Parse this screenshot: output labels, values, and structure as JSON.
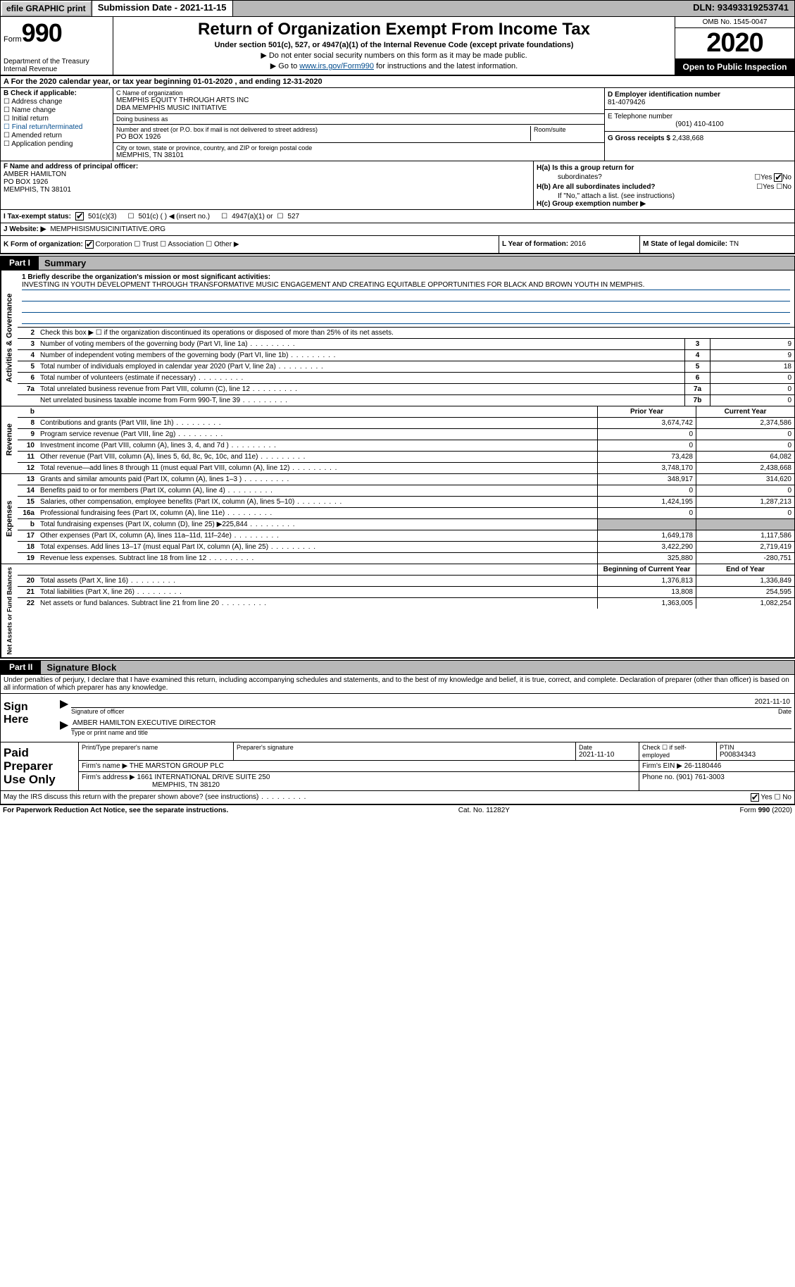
{
  "topbar": {
    "efile": "efile GRAPHIC print",
    "sub_date_label": "Submission Date - ",
    "sub_date": "2021-11-15",
    "dln_label": "DLN: ",
    "dln": "93493319253741"
  },
  "header": {
    "form_prefix": "Form",
    "form_num": "990",
    "dept": "Department of the Treasury\nInternal Revenue",
    "title": "Return of Organization Exempt From Income Tax",
    "subtitle": "Under section 501(c), 527, or 4947(a)(1) of the Internal Revenue Code (except private foundations)",
    "line1": "▶ Do not enter social security numbers on this form as it may be made public.",
    "line2_pre": "▶ Go to ",
    "line2_link": "www.irs.gov/Form990",
    "line2_post": " for instructions and the latest information.",
    "omb": "OMB No. 1545-0047",
    "year": "2020",
    "open": "Open to Public Inspection"
  },
  "row_a": "A For the 2020 calendar year, or tax year beginning 01-01-2020   , and ending 12-31-2020",
  "section_b": {
    "label": "B Check if applicable:",
    "checks": [
      "Address change",
      "Name change",
      "Initial return",
      "Final return/terminated",
      "Amended return",
      "Application pending"
    ],
    "c_name_label": "C Name of organization",
    "c_name": "MEMPHIS EQUITY THROUGH ARTS INC\nDBA MEMPHIS MUSIC INITIATIVE",
    "dba_label": "Doing business as",
    "dba": "",
    "street_label": "Number and street (or P.O. box if mail is not delivered to street address)",
    "street": "PO BOX 1926",
    "room_label": "Room/suite",
    "city_label": "City or town, state or province, country, and ZIP or foreign postal code",
    "city": "MEMPHIS, TN  38101",
    "d_label": "D Employer identification number",
    "d_ein": "81-4079426",
    "e_label": "E Telephone number",
    "e_phone": "(901) 410-4100",
    "g_label": "G Gross receipts $ ",
    "g_amount": "2,438,668"
  },
  "section_f": {
    "label": "F  Name and address of principal officer:",
    "name": "AMBER HAMILTON",
    "addr1": "PO BOX 1926",
    "addr2": "MEMPHIS, TN  38101"
  },
  "section_h": {
    "ha_label": "H(a)  Is this a group return for",
    "ha_sub": "subordinates?",
    "ha_yes": "Yes",
    "ha_no": "No",
    "hb_label": "H(b)  Are all subordinates included?",
    "hb_yes": "Yes",
    "hb_no": "No",
    "hb_note": "If \"No,\" attach a list. (see instructions)",
    "hc_label": "H(c)  Group exemption number ▶"
  },
  "row_i": {
    "label": "I   Tax-exempt status:",
    "opts": [
      "501(c)(3)",
      "501(c) (  ) ◀ (insert no.)",
      "4947(a)(1) or",
      "527"
    ]
  },
  "row_j": {
    "label": "J   Website: ▶ ",
    "val": "MEMPHISISMUSICINITIATIVE.ORG"
  },
  "row_k": {
    "label": "K Form of organization:",
    "opts": [
      "Corporation",
      "Trust",
      "Association",
      "Other ▶"
    ],
    "l_label": "L Year of formation: ",
    "l_val": "2016",
    "m_label": "M State of legal domicile: ",
    "m_val": "TN"
  },
  "part1": {
    "tab": "Part I",
    "title": "Summary",
    "side_gov": "Activities & Governance",
    "side_rev": "Revenue",
    "side_exp": "Expenses",
    "side_net": "Net Assets or Fund Balances",
    "line1_label": "1  Briefly describe the organization's mission or most significant activities:",
    "mission": "INVESTING IN YOUTH DEVELOPMENT THROUGH TRANSFORMATIVE MUSIC ENGAGEMENT AND CREATING EQUITABLE OPPORTUNITIES FOR BLACK AND BROWN YOUTH IN MEMPHIS.",
    "line2": "Check this box ▶ ☐  if the organization discontinued its operations or disposed of more than 25% of its net assets.",
    "gov_lines": [
      {
        "num": "3",
        "desc": "Number of voting members of the governing body (Part VI, line 1a)",
        "box": "3",
        "val": "9"
      },
      {
        "num": "4",
        "desc": "Number of independent voting members of the governing body (Part VI, line 1b)",
        "box": "4",
        "val": "9"
      },
      {
        "num": "5",
        "desc": "Total number of individuals employed in calendar year 2020 (Part V, line 2a)",
        "box": "5",
        "val": "18"
      },
      {
        "num": "6",
        "desc": "Total number of volunteers (estimate if necessary)",
        "box": "6",
        "val": "0"
      },
      {
        "num": "7a",
        "desc": "Total unrelated business revenue from Part VIII, column (C), line 12",
        "box": "7a",
        "val": "0"
      },
      {
        "num": "",
        "desc": "Net unrelated business taxable income from Form 990-T, line 39",
        "box": "7b",
        "val": "0"
      }
    ],
    "col_hdr_b": "b",
    "col_prior": "Prior Year",
    "col_curr": "Current Year",
    "rev_lines": [
      {
        "num": "8",
        "desc": "Contributions and grants (Part VIII, line 1h)",
        "prior": "3,674,742",
        "curr": "2,374,586"
      },
      {
        "num": "9",
        "desc": "Program service revenue (Part VIII, line 2g)",
        "prior": "0",
        "curr": "0"
      },
      {
        "num": "10",
        "desc": "Investment income (Part VIII, column (A), lines 3, 4, and 7d )",
        "prior": "0",
        "curr": "0"
      },
      {
        "num": "11",
        "desc": "Other revenue (Part VIII, column (A), lines 5, 6d, 8c, 9c, 10c, and 11e)",
        "prior": "73,428",
        "curr": "64,082"
      },
      {
        "num": "12",
        "desc": "Total revenue—add lines 8 through 11 (must equal Part VIII, column (A), line 12)",
        "prior": "3,748,170",
        "curr": "2,438,668"
      }
    ],
    "exp_lines": [
      {
        "num": "13",
        "desc": "Grants and similar amounts paid (Part IX, column (A), lines 1–3 )",
        "prior": "348,917",
        "curr": "314,620"
      },
      {
        "num": "14",
        "desc": "Benefits paid to or for members (Part IX, column (A), line 4)",
        "prior": "0",
        "curr": "0"
      },
      {
        "num": "15",
        "desc": "Salaries, other compensation, employee benefits (Part IX, column (A), lines 5–10)",
        "prior": "1,424,195",
        "curr": "1,287,213"
      },
      {
        "num": "16a",
        "desc": "Professional fundraising fees (Part IX, column (A), line 11e)",
        "prior": "0",
        "curr": "0"
      },
      {
        "num": "b",
        "desc": "Total fundraising expenses (Part IX, column (D), line 25) ▶225,844",
        "prior": "",
        "curr": "",
        "shaded": true
      },
      {
        "num": "17",
        "desc": "Other expenses (Part IX, column (A), lines 11a–11d, 11f–24e)",
        "prior": "1,649,178",
        "curr": "1,117,586"
      },
      {
        "num": "18",
        "desc": "Total expenses. Add lines 13–17 (must equal Part IX, column (A), line 25)",
        "prior": "3,422,290",
        "curr": "2,719,419"
      },
      {
        "num": "19",
        "desc": "Revenue less expenses. Subtract line 18 from line 12",
        "prior": "325,880",
        "curr": "-280,751"
      }
    ],
    "net_hdr_prior": "Beginning of Current Year",
    "net_hdr_curr": "End of Year",
    "net_lines": [
      {
        "num": "20",
        "desc": "Total assets (Part X, line 16)",
        "prior": "1,376,813",
        "curr": "1,336,849"
      },
      {
        "num": "21",
        "desc": "Total liabilities (Part X, line 26)",
        "prior": "13,808",
        "curr": "254,595"
      },
      {
        "num": "22",
        "desc": "Net assets or fund balances. Subtract line 21 from line 20",
        "prior": "1,363,005",
        "curr": "1,082,254"
      }
    ]
  },
  "part2": {
    "tab": "Part II",
    "title": "Signature Block",
    "declaration": "Under penalties of perjury, I declare that I have examined this return, including accompanying schedules and statements, and to the best of my knowledge and belief, it is true, correct, and complete. Declaration of preparer (other than officer) is based on all information of which preparer has any knowledge.",
    "sign_here": "Sign Here",
    "sig_date": "2021-11-10",
    "sig_officer_label": "Signature of officer",
    "date_label": "Date",
    "officer_name": "AMBER HAMILTON  EXECUTIVE DIRECTOR",
    "officer_name_label": "Type or print name and title",
    "paid_label": "Paid Preparer Use Only",
    "prep_name_label": "Print/Type preparer's name",
    "prep_sig_label": "Preparer's signature",
    "prep_date_label": "Date",
    "prep_date": "2021-11-10",
    "prep_check_label": "Check ☐ if self-employed",
    "ptin_label": "PTIN",
    "ptin": "P00834343",
    "firm_name_label": "Firm's name   ▶ ",
    "firm_name": "THE MARSTON GROUP PLC",
    "firm_ein_label": "Firm's EIN ▶ ",
    "firm_ein": "26-1180446",
    "firm_addr_label": "Firm's address ▶ ",
    "firm_addr": "1661 INTERNATIONAL DRIVE SUITE 250",
    "firm_city": "MEMPHIS, TN  38120",
    "phone_label": "Phone no. ",
    "phone": "(901) 761-3003",
    "discuss": "May the IRS discuss this return with the preparer shown above? (see instructions)",
    "discuss_yes": "Yes",
    "discuss_no": "No"
  },
  "footer": {
    "left": "For Paperwork Reduction Act Notice, see the separate instructions.",
    "mid": "Cat. No. 11282Y",
    "right": "Form 990 (2020)"
  }
}
